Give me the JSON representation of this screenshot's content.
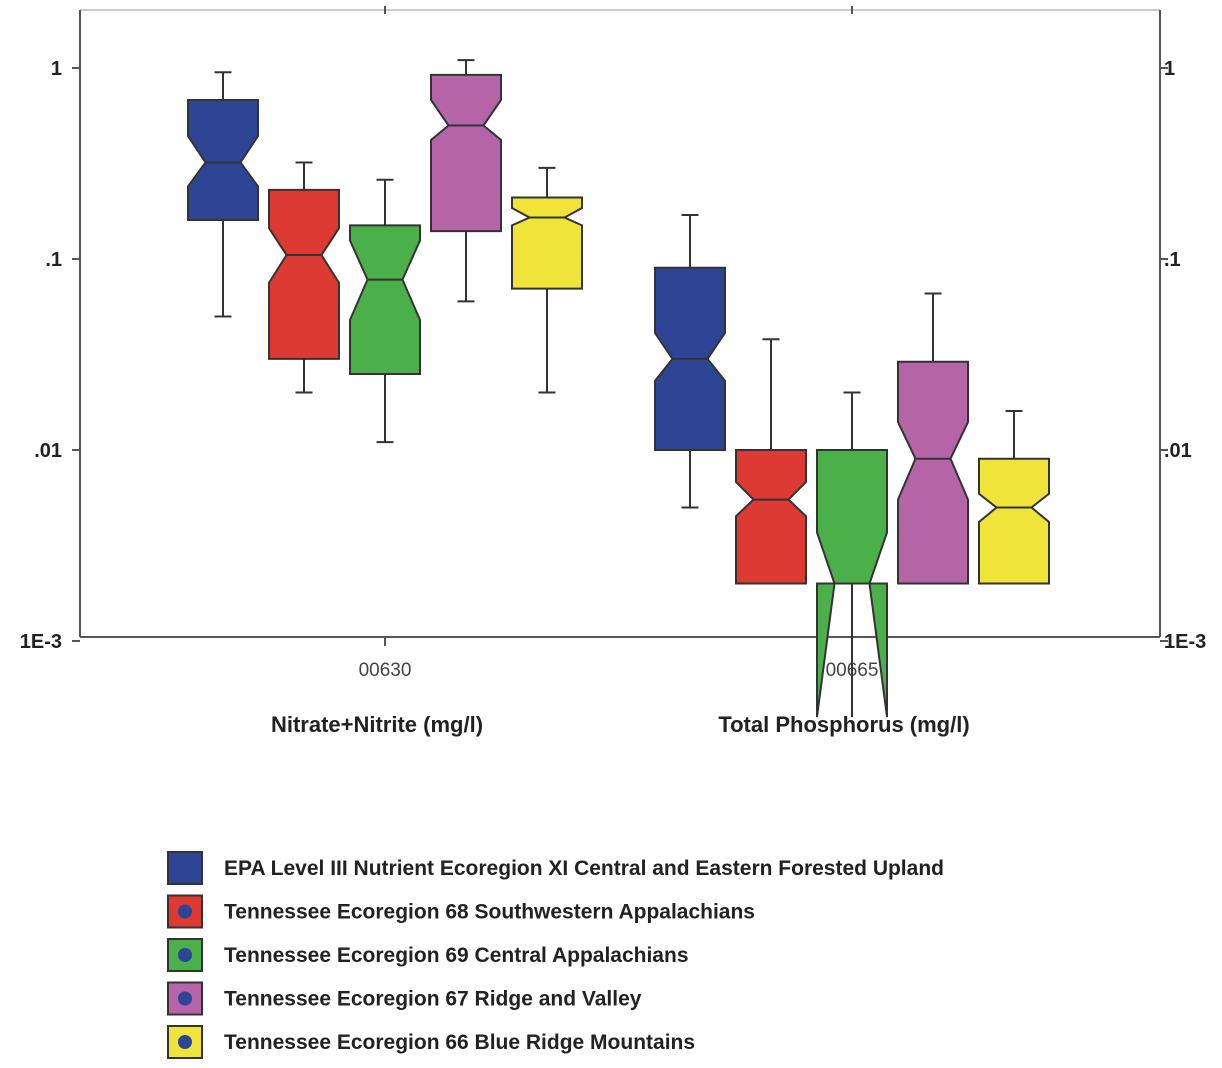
{
  "chart_data": {
    "type": "box",
    "y_scale": "log",
    "ylim": [
      0.001,
      2
    ],
    "y_ticks": [
      {
        "value": 1,
        "label": "1"
      },
      {
        "value": 0.1,
        "label": ".1"
      },
      {
        "value": 0.01,
        "label": ".01"
      },
      {
        "value": 0.001,
        "label": "1E-3"
      }
    ],
    "right_axis_mirrored": true,
    "grid": false,
    "categories": [
      {
        "code": "00630",
        "label": "Nitrate+Nitrite (mg/l)"
      },
      {
        "code": "00665",
        "label": "Total Phosphorus (mg/l)"
      }
    ],
    "series": [
      {
        "name": "EPA Level III Nutrient Ecoregion XI Central and Eastern Forested Upland",
        "color": "#2e4596",
        "boxes": [
          {
            "whisker_low": 0.05,
            "q1": 0.16,
            "median": 0.32,
            "q3": 0.68,
            "whisker_high": 0.95,
            "notch_low": 0.24,
            "notch_high": 0.44
          },
          {
            "whisker_low": 0.005,
            "q1": 0.01,
            "median": 0.03,
            "q3": 0.09,
            "whisker_high": 0.17,
            "notch_low": 0.023,
            "notch_high": 0.041
          }
        ]
      },
      {
        "name": "Tennessee Ecoregion 68 Southwestern Appalachians",
        "color": "#dc3a33",
        "boxes": [
          {
            "whisker_low": 0.02,
            "q1": 0.03,
            "median": 0.105,
            "q3": 0.23,
            "whisker_high": 0.32,
            "notch_low": 0.075,
            "notch_high": 0.145
          },
          {
            "whisker_low": 0.002,
            "q1": 0.002,
            "median": 0.0055,
            "q3": 0.01,
            "whisker_high": 0.038,
            "notch_low": 0.0045,
            "notch_high": 0.0068
          }
        ]
      },
      {
        "name": "Tennessee Ecoregion 69 Central Appalachians",
        "color": "#4cb04a",
        "boxes": [
          {
            "whisker_low": 0.011,
            "q1": 0.025,
            "median": 0.078,
            "q3": 0.15,
            "whisker_high": 0.26,
            "notch_low": 0.048,
            "notch_high": 0.125
          },
          {
            "whisker_low": 0.002,
            "q1": 0.002,
            "median": 0.002,
            "q3": 0.01,
            "whisker_high": 0.02,
            "notch_low": 0.0004,
            "notch_high": 0.0037
          }
        ]
      },
      {
        "name": "Tennessee Ecoregion 67 Ridge and Valley",
        "color": "#b565a7",
        "boxes": [
          {
            "whisker_low": 0.06,
            "q1": 0.14,
            "median": 0.5,
            "q3": 0.92,
            "whisker_high": 1.1,
            "notch_low": 0.42,
            "notch_high": 0.68
          },
          {
            "whisker_low": 0.002,
            "q1": 0.002,
            "median": 0.009,
            "q3": 0.029,
            "whisker_high": 0.066,
            "notch_low": 0.0055,
            "notch_high": 0.014
          }
        ]
      },
      {
        "name": "Tennessee Ecoregion 66 Blue Ridge Mountains",
        "color": "#f0e43a",
        "boxes": [
          {
            "whisker_low": 0.02,
            "q1": 0.07,
            "median": 0.165,
            "q3": 0.21,
            "whisker_high": 0.3,
            "notch_low": 0.15,
            "notch_high": 0.185
          },
          {
            "whisker_low": 0.002,
            "q1": 0.002,
            "median": 0.005,
            "q3": 0.009,
            "whisker_high": 0.016,
            "notch_low": 0.0042,
            "notch_high": 0.0059
          }
        ]
      }
    ]
  },
  "colors": {
    "axis": "#555555",
    "legend_dot": "#2e4596"
  }
}
